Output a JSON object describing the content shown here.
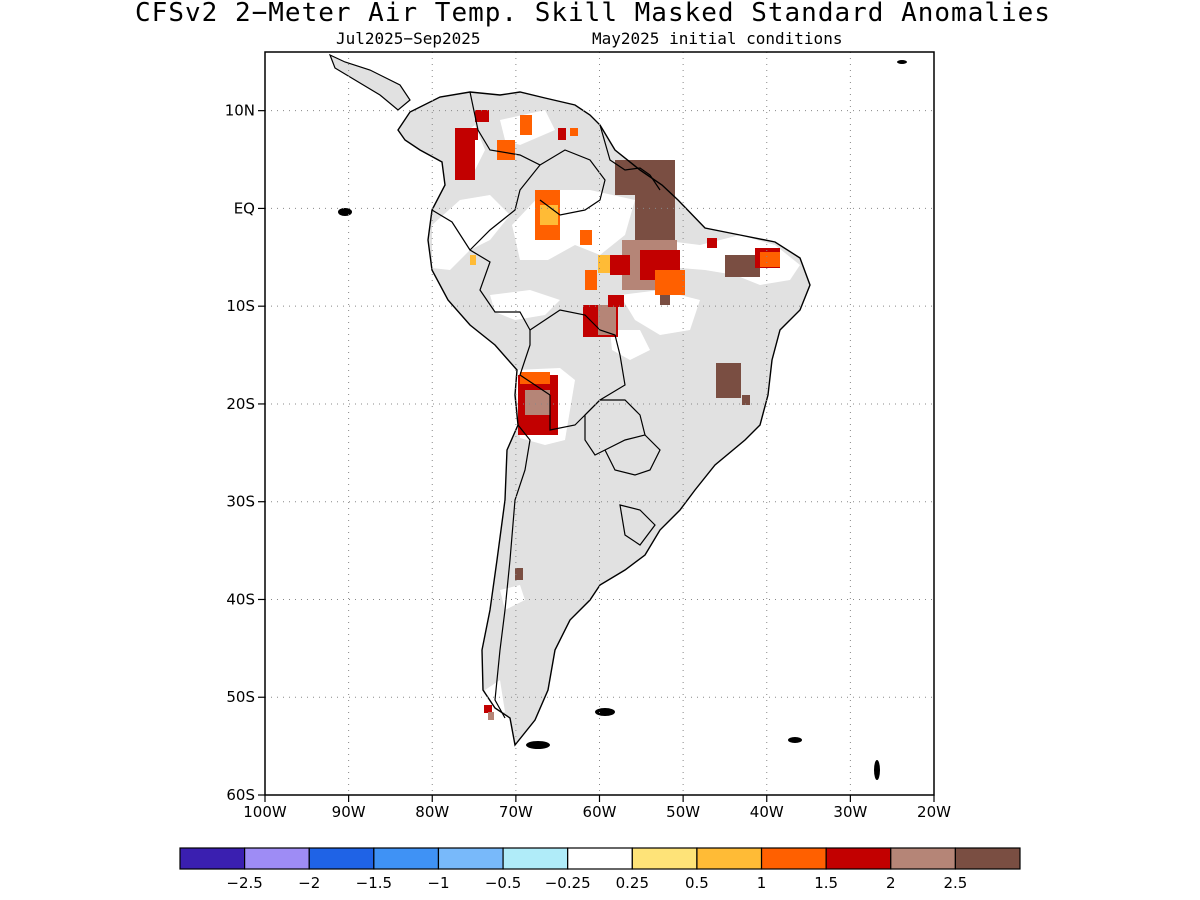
{
  "title": "CFSv2 2−Meter Air Temp. Skill Masked Standard Anomalies",
  "subtitle_left": "Jul2025−Sep2025",
  "subtitle_right": "May2025 initial conditions",
  "map": {
    "lat_labels": [
      "10N",
      "EQ",
      "10S",
      "20S",
      "30S",
      "40S",
      "50S",
      "60S"
    ],
    "lat_values": [
      10,
      0,
      -10,
      -20,
      -30,
      -40,
      -50,
      -60
    ],
    "lon_labels": [
      "100W",
      "90W",
      "80W",
      "70W",
      "60W",
      "50W",
      "40W",
      "30W",
      "20W"
    ],
    "lon_values": [
      -100,
      -90,
      -80,
      -70,
      -60,
      -50,
      -40,
      -30,
      -20
    ],
    "lat_range": [
      -60,
      16
    ],
    "lon_range": [
      -100,
      -20
    ],
    "gridlines": "dotted",
    "land_fill": "#e1e1e1",
    "coastline_color": "#000000"
  },
  "anomaly_regions": [
    {
      "name": "colombia-north",
      "category": "1.5"
    },
    {
      "name": "venezuela-north",
      "category": "1"
    },
    {
      "name": "amazon-west",
      "category": "0.5"
    },
    {
      "name": "amapa-para",
      "category": "2.5"
    },
    {
      "name": "para-central",
      "category": "2"
    },
    {
      "name": "mato-grosso-north",
      "category": "2"
    },
    {
      "name": "ceara",
      "category": "2.5"
    },
    {
      "name": "minas-bahia",
      "category": "2.5"
    },
    {
      "name": "altiplano",
      "category": "1.5"
    },
    {
      "name": "patagonia-dot",
      "category": "2"
    }
  ],
  "colorbar": {
    "colors": [
      "#3a1fb0",
      "#9e8cf5",
      "#1f63e6",
      "#3f92f5",
      "#78b9fa",
      "#b0ecf9",
      "#ffffff",
      "#fee378",
      "#ffbb36",
      "#ff6000",
      "#c20000",
      "#b58577",
      "#7a4e42"
    ],
    "labels": [
      "−2.5",
      "−2",
      "−1.5",
      "−1",
      "−0.5",
      "−0.25",
      "0.25",
      "0.5",
      "1",
      "1.5",
      "2",
      "2.5"
    ]
  }
}
